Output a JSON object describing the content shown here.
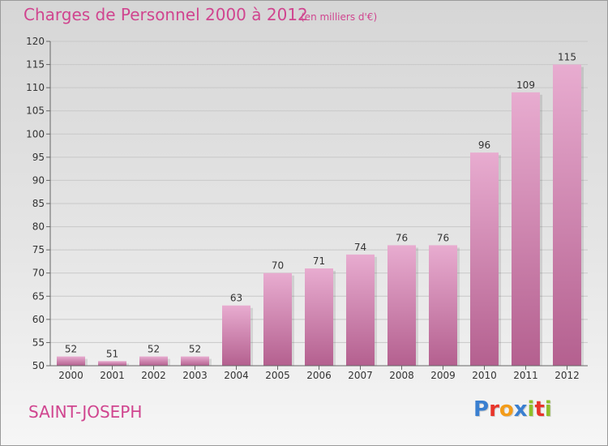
{
  "header": {
    "title": "Charges de Personnel 2000 à 2012",
    "subtitle": "(en milliers d'€)"
  },
  "footer": {
    "place": "SAINT-JOSEPH",
    "logo_text": "Proxiti",
    "logo_letter_colors": [
      "#3a7fd0",
      "#e8342a",
      "#f39c1a",
      "#3a7fd0",
      "#8fbf2a",
      "#e8342a",
      "#8fbf2a"
    ]
  },
  "colors": {
    "title": "#d0458f",
    "bar_top": "#e8acd0",
    "bar_bottom": "#b4608f",
    "grid": "#c8c8c8",
    "axis_text": "#333333"
  },
  "chart_data": {
    "type": "bar",
    "categories": [
      "2000",
      "2001",
      "2002",
      "2003",
      "2004",
      "2005",
      "2006",
      "2007",
      "2008",
      "2009",
      "2010",
      "2011",
      "2012"
    ],
    "values": [
      52,
      51,
      52,
      52,
      63,
      70,
      71,
      74,
      76,
      76,
      96,
      109,
      115
    ],
    "ylim": [
      50,
      120
    ],
    "yticks": [
      50,
      55,
      60,
      65,
      70,
      75,
      80,
      85,
      90,
      95,
      100,
      105,
      110,
      115,
      120
    ],
    "grid": true,
    "data_labels": true
  }
}
